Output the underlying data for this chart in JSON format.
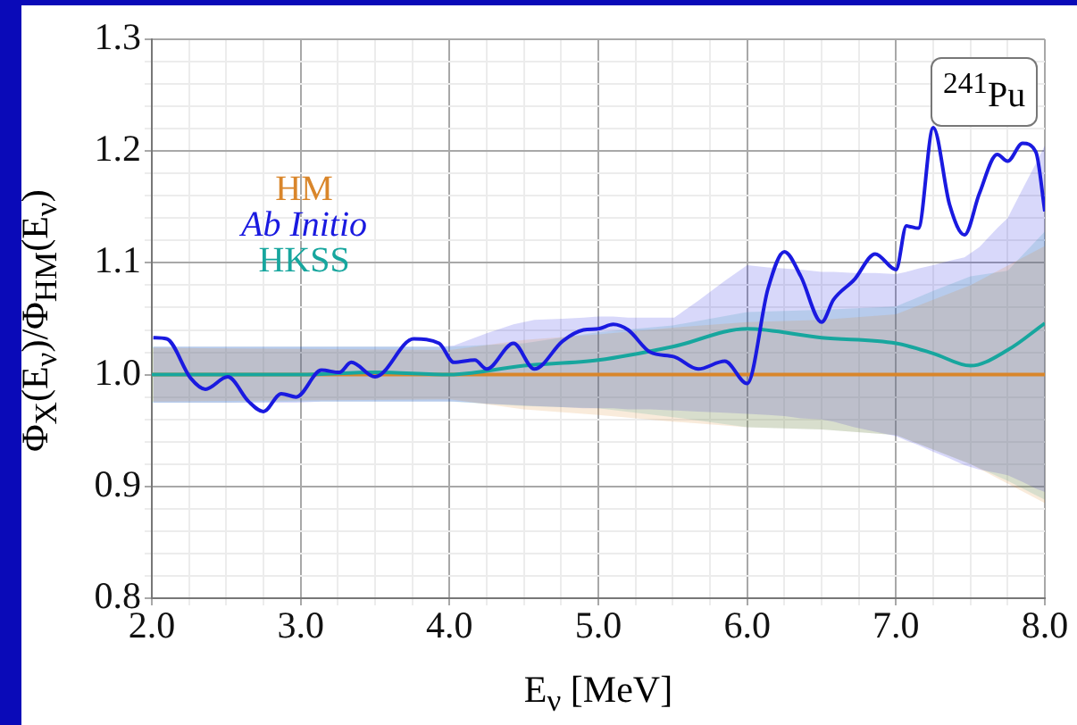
{
  "chart_data": {
    "type": "line",
    "xlabel": "E$_{ν}$ [MeV]",
    "ylabel": "Φ$_{X}$(E$_{ν}$)/Φ$_{HM}$(E$_{ν}$)",
    "annotations": [
      "$^{241}$Pu"
    ],
    "xlim": [
      2,
      8
    ],
    "ylim": [
      0.8,
      1.3
    ],
    "xticks": [
      {
        "value": 2,
        "label": "2.0"
      },
      {
        "value": 2.25,
        "label": null
      },
      {
        "value": 2.5,
        "label": null
      },
      {
        "value": 2.75,
        "label": null
      },
      {
        "value": 3,
        "label": "3.0"
      },
      {
        "value": 3.25,
        "label": null
      },
      {
        "value": 3.5,
        "label": null
      },
      {
        "value": 3.75,
        "label": null
      },
      {
        "value": 4,
        "label": "4.0"
      },
      {
        "value": 4.25,
        "label": null
      },
      {
        "value": 4.5,
        "label": null
      },
      {
        "value": 4.75,
        "label": null
      },
      {
        "value": 5,
        "label": "5.0"
      },
      {
        "value": 5.25,
        "label": null
      },
      {
        "value": 5.5,
        "label": null
      },
      {
        "value": 5.75,
        "label": null
      },
      {
        "value": 6,
        "label": "6.0"
      },
      {
        "value": 6.25,
        "label": null
      },
      {
        "value": 6.5,
        "label": null
      },
      {
        "value": 6.75,
        "label": null
      },
      {
        "value": 7,
        "label": "7.0"
      },
      {
        "value": 7.25,
        "label": null
      },
      {
        "value": 7.5,
        "label": null
      },
      {
        "value": 7.75,
        "label": null
      },
      {
        "value": 8,
        "label": "8.0"
      }
    ],
    "yticks": [
      0.8,
      {
        "value": 0.82,
        "label": null
      },
      {
        "value": 0.84,
        "label": null
      },
      {
        "value": 0.86,
        "label": null
      },
      {
        "value": 0.88,
        "label": null
      },
      0.9,
      {
        "value": 0.92,
        "label": null
      },
      {
        "value": 0.94,
        "label": null
      },
      {
        "value": 0.96,
        "label": null
      },
      {
        "value": 0.98,
        "label": null
      },
      {
        "value": 1.0,
        "label": "1.0"
      },
      {
        "value": 1.02,
        "label": null
      },
      {
        "value": 1.04,
        "label": null
      },
      {
        "value": 1.06,
        "label": null
      },
      {
        "value": 1.08,
        "label": null
      },
      1.1,
      {
        "value": 1.12,
        "label": null
      },
      {
        "value": 1.14,
        "label": null
      },
      {
        "value": 1.16,
        "label": null
      },
      {
        "value": 1.18,
        "label": null
      },
      1.2,
      {
        "value": 1.22,
        "label": null
      },
      {
        "value": 1.24,
        "label": null
      },
      {
        "value": 1.26,
        "label": null
      },
      {
        "value": 1.28,
        "label": null
      },
      1.3
    ],
    "grid": true,
    "legend": "top left",
    "line_style": "solid",
    "marker": "none",
    "series": [
      {
        "name": "HM",
        "color": "#d9862b",
        "x": [
          2,
          3,
          4,
          4.5,
          5,
          5.5,
          6,
          6.5,
          7,
          7.5,
          8
        ],
        "values": [
          1,
          1,
          1,
          1,
          1,
          1,
          1,
          1,
          1,
          1,
          1
        ],
        "lower": [
          0.976,
          0.977,
          0.978,
          0.969,
          0.964,
          0.958,
          0.953,
          0.951,
          0.946,
          0.92,
          0.885
        ],
        "upper": [
          1.024,
          1.023,
          1.022,
          1.031,
          1.036,
          1.042,
          1.047,
          1.049,
          1.054,
          1.08,
          1.115
        ]
      },
      {
        "name": "Ab Initio",
        "color": "#1a1ae0",
        "x": [
          2.01,
          2.1,
          2.26,
          2.36,
          2.51,
          2.65,
          2.75,
          2.87,
          2.97,
          3.14,
          3.26,
          3.34,
          3.5,
          3.76,
          3.93,
          4.03,
          4.17,
          4.25,
          4.43,
          4.57,
          4.76,
          4.9,
          5.0,
          5.1,
          5.2,
          5.35,
          5.51,
          5.67,
          5.85,
          6.0,
          6.14,
          6.25,
          6.36,
          6.5,
          6.58,
          6.72,
          6.86,
          7.0,
          7.07,
          7.15,
          7.25,
          7.36,
          7.46,
          7.56,
          7.68,
          7.75,
          7.85,
          7.94,
          8.0
        ],
        "values": [
          1.033,
          1.032,
          0.997,
          0.987,
          0.998,
          0.976,
          0.967,
          0.983,
          0.98,
          1.004,
          1.002,
          1.011,
          0.998,
          1.032,
          1.028,
          1.011,
          1.013,
          1.005,
          1.028,
          1.005,
          1.03,
          1.04,
          1.041,
          1.045,
          1.04,
          1.02,
          1.016,
          1.005,
          1.012,
          0.992,
          1.077,
          1.11,
          1.088,
          1.047,
          1.067,
          1.085,
          1.108,
          1.094,
          1.133,
          1.131,
          1.221,
          1.152,
          1.125,
          1.162,
          1.197,
          1.191,
          1.207,
          1.199,
          1.146
        ],
        "lower": [
          0.975,
          0.975,
          0.975,
          0.975,
          0.975,
          0.975,
          0.975,
          0.975,
          0.975,
          0.976,
          0.976,
          0.976,
          0.976,
          0.976,
          0.976,
          0.976,
          0.975,
          0.974,
          0.973,
          0.972,
          0.971,
          0.97,
          0.97,
          0.97,
          0.969,
          0.969,
          0.968,
          0.967,
          0.966,
          0.965,
          0.964,
          0.963,
          0.961,
          0.96,
          0.958,
          0.953,
          0.949,
          0.945,
          0.941,
          0.937,
          0.931,
          0.925,
          0.919,
          0.915,
          0.912,
          0.91,
          0.904,
          0.898,
          0.895
        ],
        "upper": [
          1.025,
          1.025,
          1.025,
          1.025,
          1.025,
          1.025,
          1.025,
          1.025,
          1.025,
          1.025,
          1.025,
          1.025,
          1.025,
          1.025,
          1.025,
          1.026,
          1.033,
          1.037,
          1.045,
          1.049,
          1.05,
          1.051,
          1.052,
          1.052,
          1.051,
          1.051,
          1.051,
          1.066,
          1.084,
          1.098,
          1.096,
          1.095,
          1.094,
          1.092,
          1.092,
          1.091,
          1.091,
          1.09,
          1.092,
          1.095,
          1.098,
          1.102,
          1.105,
          1.114,
          1.131,
          1.14,
          1.166,
          1.189,
          1.205
        ]
      },
      {
        "name": "HKSS",
        "color": "#17a69e",
        "x": [
          2,
          2.5,
          3,
          3.5,
          4,
          4.5,
          5,
          5.5,
          6,
          6.5,
          7,
          7.25,
          7.5,
          7.75,
          8
        ],
        "values": [
          1,
          1,
          1,
          1.002,
          1,
          1.008,
          1.013,
          1.025,
          1.041,
          1.033,
          1.028,
          1.019,
          1.008,
          1.022,
          1.046
        ],
        "lower": [
          0.975,
          0.975,
          0.976,
          0.976,
          0.976,
          0.972,
          0.97,
          0.962,
          0.953,
          0.951,
          0.946,
          0.933,
          0.92,
          0.905,
          0.888
        ],
        "upper": [
          1.025,
          1.025,
          1.025,
          1.025,
          1.025,
          1.028,
          1.038,
          1.044,
          1.056,
          1.058,
          1.061,
          1.075,
          1.088,
          1.093,
          1.128
        ]
      }
    ]
  }
}
